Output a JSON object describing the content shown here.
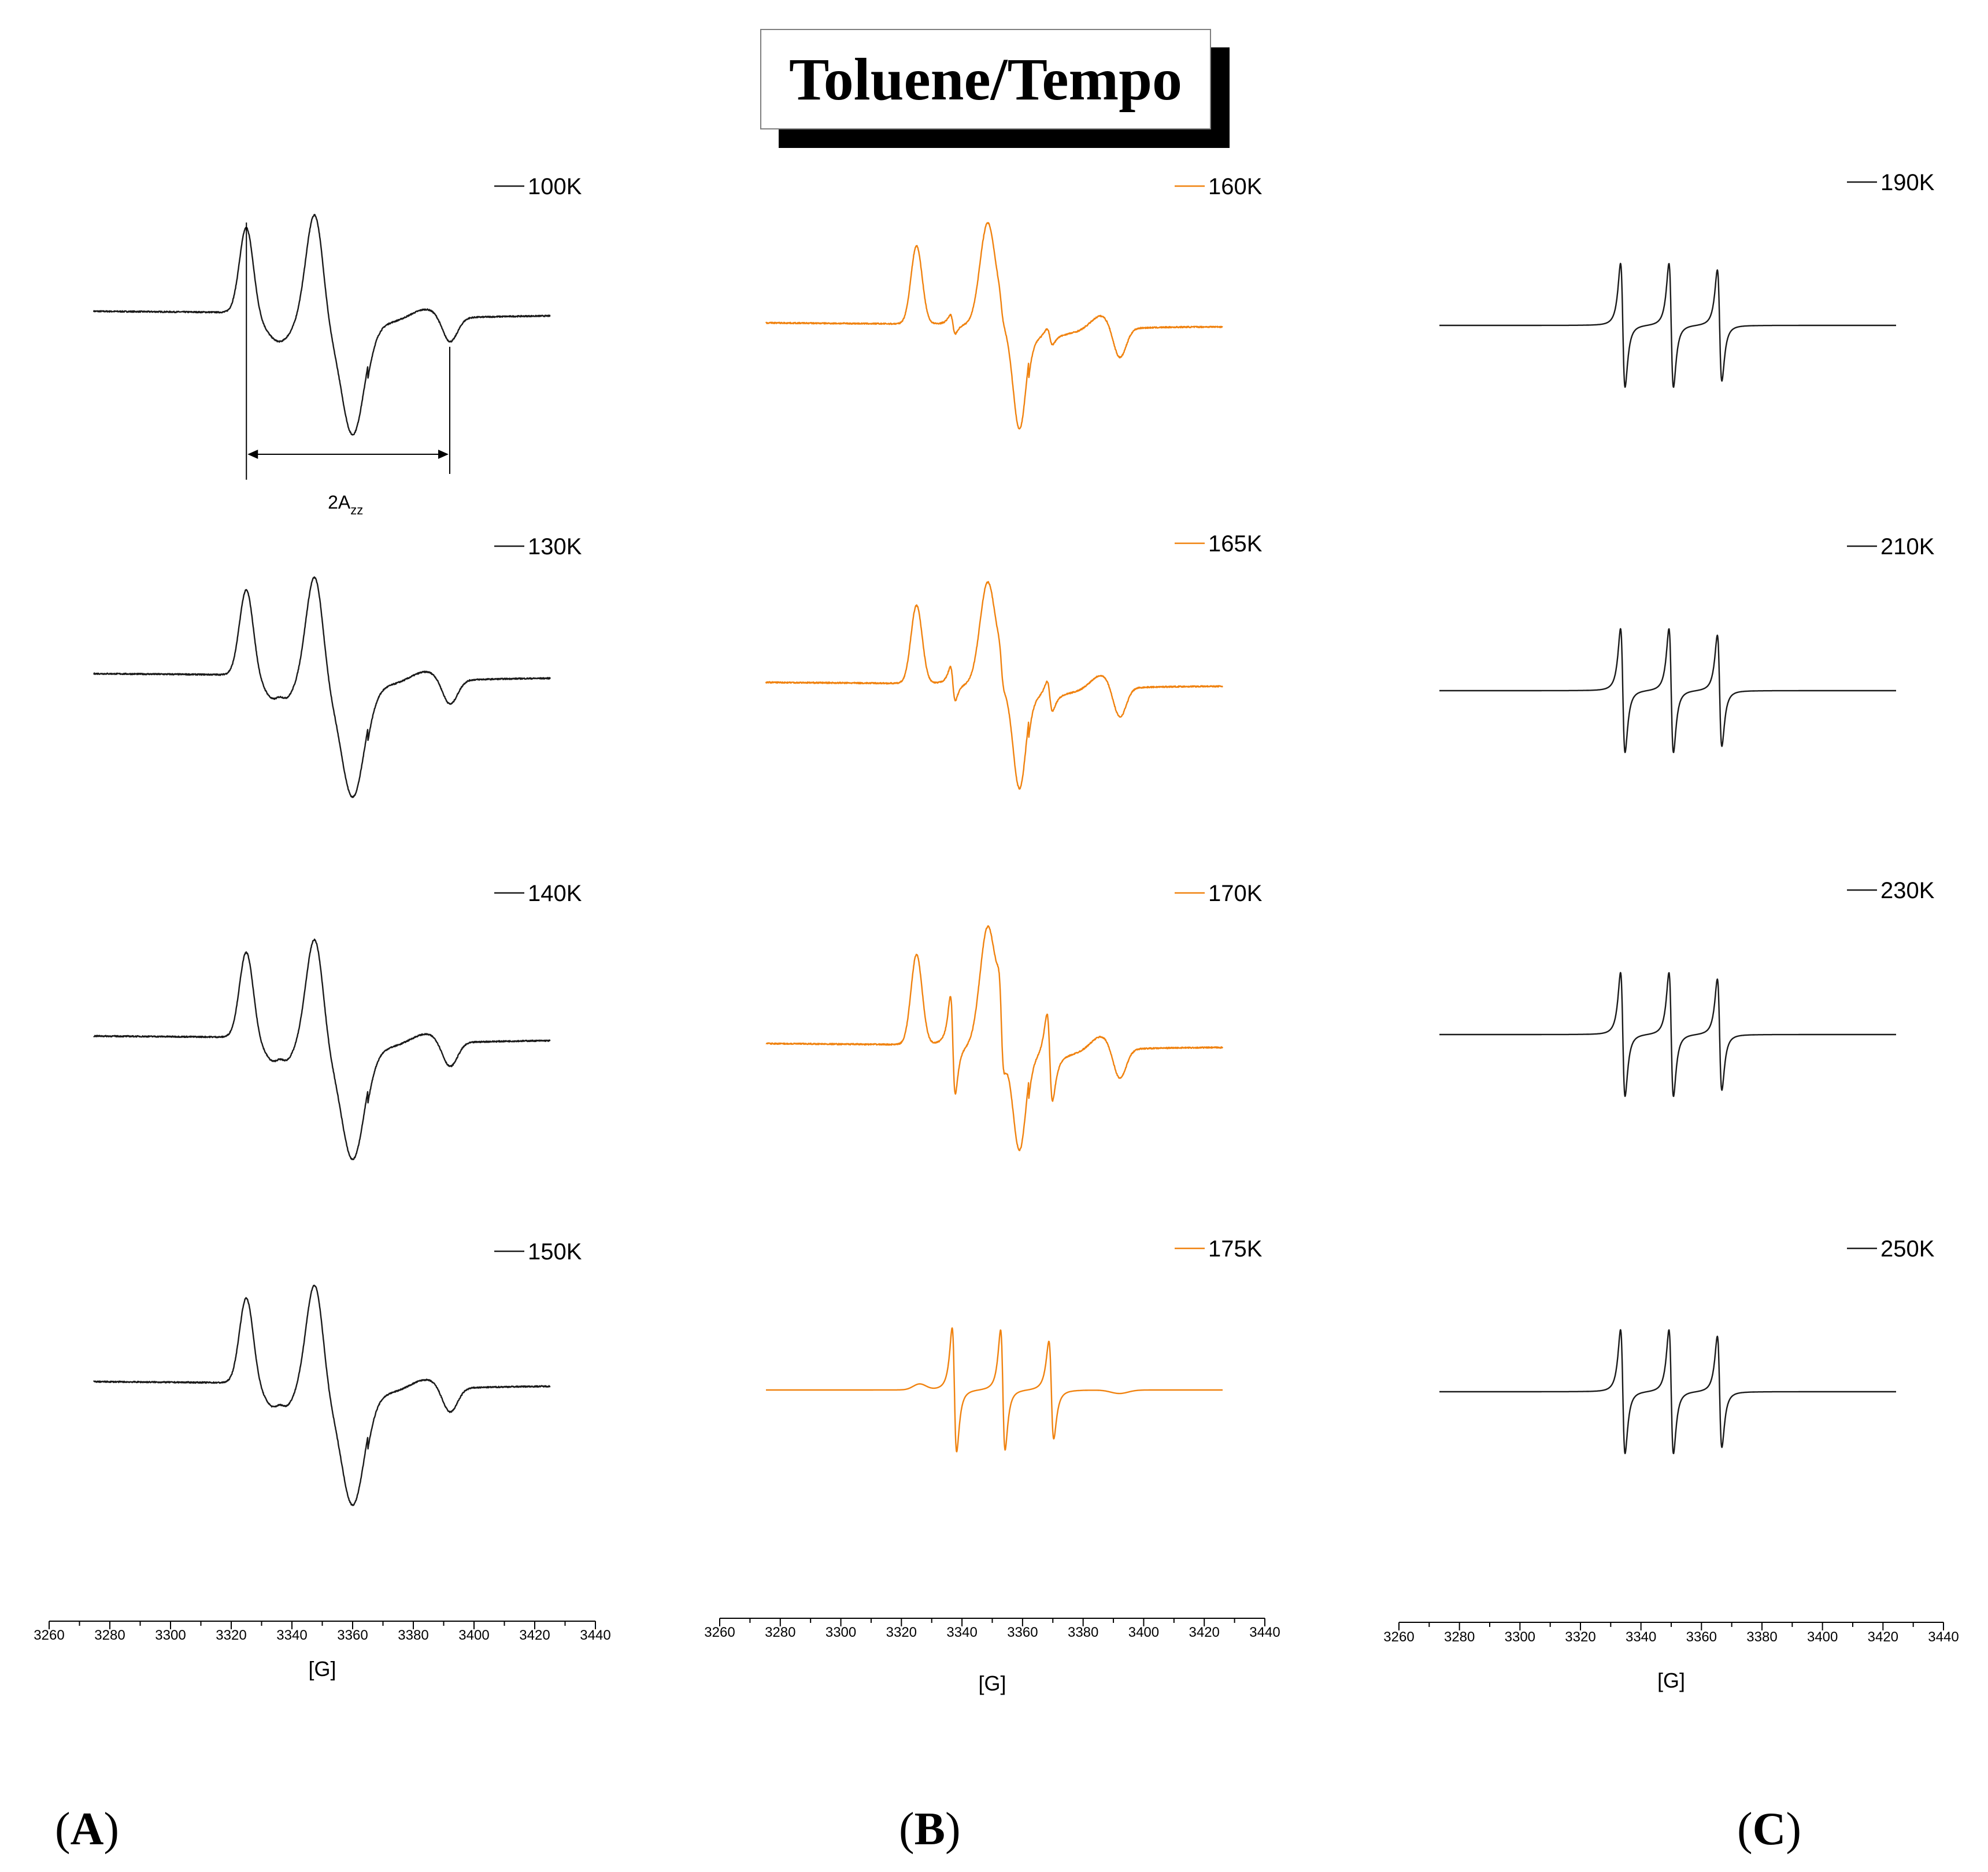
{
  "title": "Toluene/Tempo",
  "colors": {
    "black": "#1a1a1a",
    "orange": "#f0820f"
  },
  "panels": [
    {
      "label": "A",
      "bold_letter": "A",
      "color": "black",
      "xlabel": "[G]",
      "x_ticks": [
        3260,
        3280,
        3300,
        3320,
        3340,
        3360,
        3380,
        3400,
        3420,
        3440
      ],
      "traces": [
        {
          "temp": "100K",
          "kind": "powder",
          "variant": 0
        },
        {
          "temp": "130K",
          "kind": "powder",
          "variant": 1
        },
        {
          "temp": "140K",
          "kind": "powder",
          "variant": 1
        },
        {
          "temp": "150K",
          "kind": "powder",
          "variant": 1
        }
      ],
      "annotation": {
        "text_main": "2A",
        "text_sub": "zz",
        "from_G": 3325,
        "to_G": 3392
      }
    },
    {
      "label": "B",
      "bold_letter": "B",
      "color": "orange",
      "xlabel": "[G]",
      "x_ticks": [
        3260,
        3280,
        3300,
        3320,
        3340,
        3360,
        3380,
        3400,
        3420,
        3440
      ],
      "traces": [
        {
          "temp": "160K",
          "kind": "mixed",
          "variant": 0
        },
        {
          "temp": "165K",
          "kind": "mixed",
          "variant": 1
        },
        {
          "temp": "170K",
          "kind": "mixed",
          "variant": 2
        },
        {
          "temp": "175K",
          "kind": "triplet_weak",
          "variant": 0
        }
      ]
    },
    {
      "label": "C",
      "bold_letter": "C",
      "color": "black",
      "xlabel": "[G]",
      "x_ticks": [
        3260,
        3280,
        3300,
        3320,
        3340,
        3360,
        3380,
        3400,
        3420,
        3440
      ],
      "traces": [
        {
          "temp": "190K",
          "kind": "triplet",
          "variant": 0
        },
        {
          "temp": "210K",
          "kind": "triplet",
          "variant": 1
        },
        {
          "temp": "230K",
          "kind": "triplet",
          "variant": 2
        },
        {
          "temp": "250K",
          "kind": "triplet",
          "variant": 3
        }
      ]
    }
  ],
  "chart_data": [
    {
      "type": "line",
      "title": "",
      "xlabel": "[G]",
      "ylabel": "",
      "xlim": [
        3260,
        3440
      ],
      "series": [
        {
          "name": "100K"
        },
        {
          "name": "130K"
        },
        {
          "name": "140K"
        },
        {
          "name": "150K"
        }
      ],
      "features": {
        "100K": {
          "peaks_G": [
            3325,
            3347
          ],
          "minima_G": [
            3360,
            3392
          ]
        },
        "130K": {
          "peaks_G": [
            3325,
            3347
          ],
          "minima_G": [
            3360,
            3392
          ]
        },
        "140K": {
          "peaks_G": [
            3325,
            3347
          ],
          "minima_G": [
            3360,
            3392
          ]
        },
        "150K": {
          "peaks_G": [
            3325,
            3347
          ],
          "minima_G": [
            3360,
            3392
          ]
        }
      }
    },
    {
      "type": "line",
      "title": "",
      "xlabel": "[G]",
      "ylabel": "",
      "xlim": [
        3260,
        3440
      ],
      "series": [
        {
          "name": "160K"
        },
        {
          "name": "165K"
        },
        {
          "name": "170K"
        },
        {
          "name": "175K"
        }
      ],
      "features": {
        "160K": {
          "peaks_G": [
            3325,
            3348
          ],
          "minima_G": [
            3359,
            3392
          ]
        },
        "165K": {
          "peaks_G": [
            3325,
            3348
          ],
          "minima_G": [
            3359,
            3392
          ]
        },
        "170K": {
          "peaks_G": [
            3325,
            3335,
            3350,
            3367
          ],
          "minima_G": [
            3339,
            3359,
            3370,
            3392
          ]
        },
        "175K": {
          "peaks_G": [
            3336,
            3352,
            3368
          ],
          "minima_G": [
            3339,
            3355,
            3371
          ]
        }
      }
    },
    {
      "type": "line",
      "title": "",
      "xlabel": "[G]",
      "ylabel": "",
      "xlim": [
        3260,
        3440
      ],
      "series": [
        {
          "name": "190K"
        },
        {
          "name": "210K"
        },
        {
          "name": "230K"
        },
        {
          "name": "250K"
        }
      ],
      "features": {
        "190K": {
          "line_centers_G": [
            3334,
            3350,
            3366
          ]
        },
        "210K": {
          "line_centers_G": [
            3334,
            3350,
            3366
          ]
        },
        "230K": {
          "line_centers_G": [
            3334,
            3350,
            3366
          ]
        },
        "250K": {
          "line_centers_G": [
            3334,
            3350,
            3366
          ]
        }
      }
    }
  ]
}
